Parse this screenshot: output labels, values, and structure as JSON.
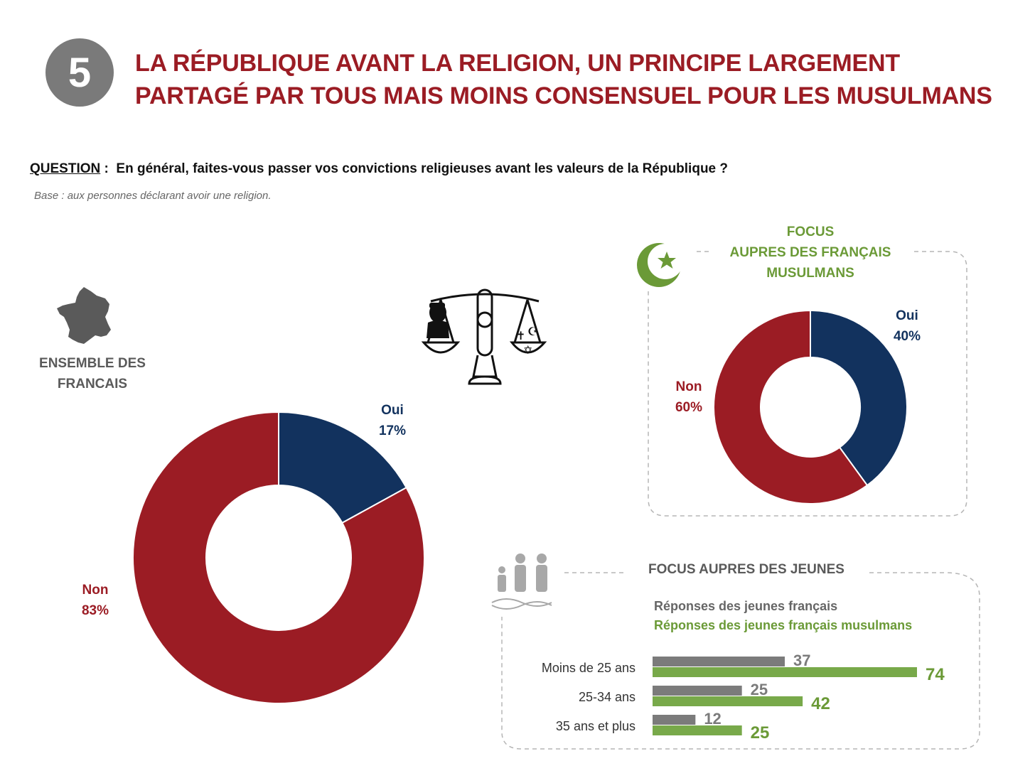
{
  "header": {
    "number": "5",
    "title_line1": "LA RÉPUBLIQUE AVANT LA RELIGION, UN PRINCIPE LARGEMENT",
    "title_line2": "PARTAGÉ PAR TOUS MAIS MOINS CONSENSUEL POUR LES MUSULMANS"
  },
  "question": {
    "label": "QUESTION",
    "sep": " :  ",
    "text": "En général, faites-vous passer vos convictions religieuses avant les valeurs de la République ?",
    "base": "Base : aux personnes déclarant avoir une religion."
  },
  "ensemble": {
    "line1": "ENSEMBLE DES",
    "line2": "FRANCAIS"
  },
  "muslim_focus": {
    "line1": "FOCUS",
    "line2": "AUPRES DES FRANÇAIS",
    "line3": "MUSULMANS"
  },
  "jeunes_focus": {
    "title": "FOCUS AUPRES DES JEUNES",
    "legend_young": "Réponses des jeunes français",
    "legend_muslim": "Réponses des jeunes français musulmans"
  },
  "colors": {
    "oui": "#12325e",
    "non": "#9b1c24",
    "grey_bar": "#7b7b7b",
    "green_bar": "#78a94a",
    "title": "#9b1c24"
  },
  "chart_data": [
    {
      "type": "pie",
      "title": "ENSEMBLE DES FRANCAIS",
      "slices": [
        {
          "label": "Oui",
          "value": 17,
          "text": "17%"
        },
        {
          "label": "Non",
          "value": 83,
          "text": "83%"
        }
      ]
    },
    {
      "type": "pie",
      "title": "FOCUS AUPRES DES FRANÇAIS MUSULMANS",
      "slices": [
        {
          "label": "Oui",
          "value": 40,
          "text": "40%"
        },
        {
          "label": "Non",
          "value": 60,
          "text": "60%"
        }
      ]
    },
    {
      "type": "bar",
      "title": "FOCUS AUPRES DES JEUNES",
      "categories": [
        "Moins de 25 ans",
        "25-34 ans",
        "35 ans et plus"
      ],
      "series": [
        {
          "name": "Réponses des jeunes français",
          "values": [
            37,
            25,
            12
          ]
        },
        {
          "name": "Réponses des jeunes français musulmans",
          "values": [
            74,
            42,
            25
          ]
        }
      ],
      "xlim": [
        0,
        80
      ]
    }
  ]
}
